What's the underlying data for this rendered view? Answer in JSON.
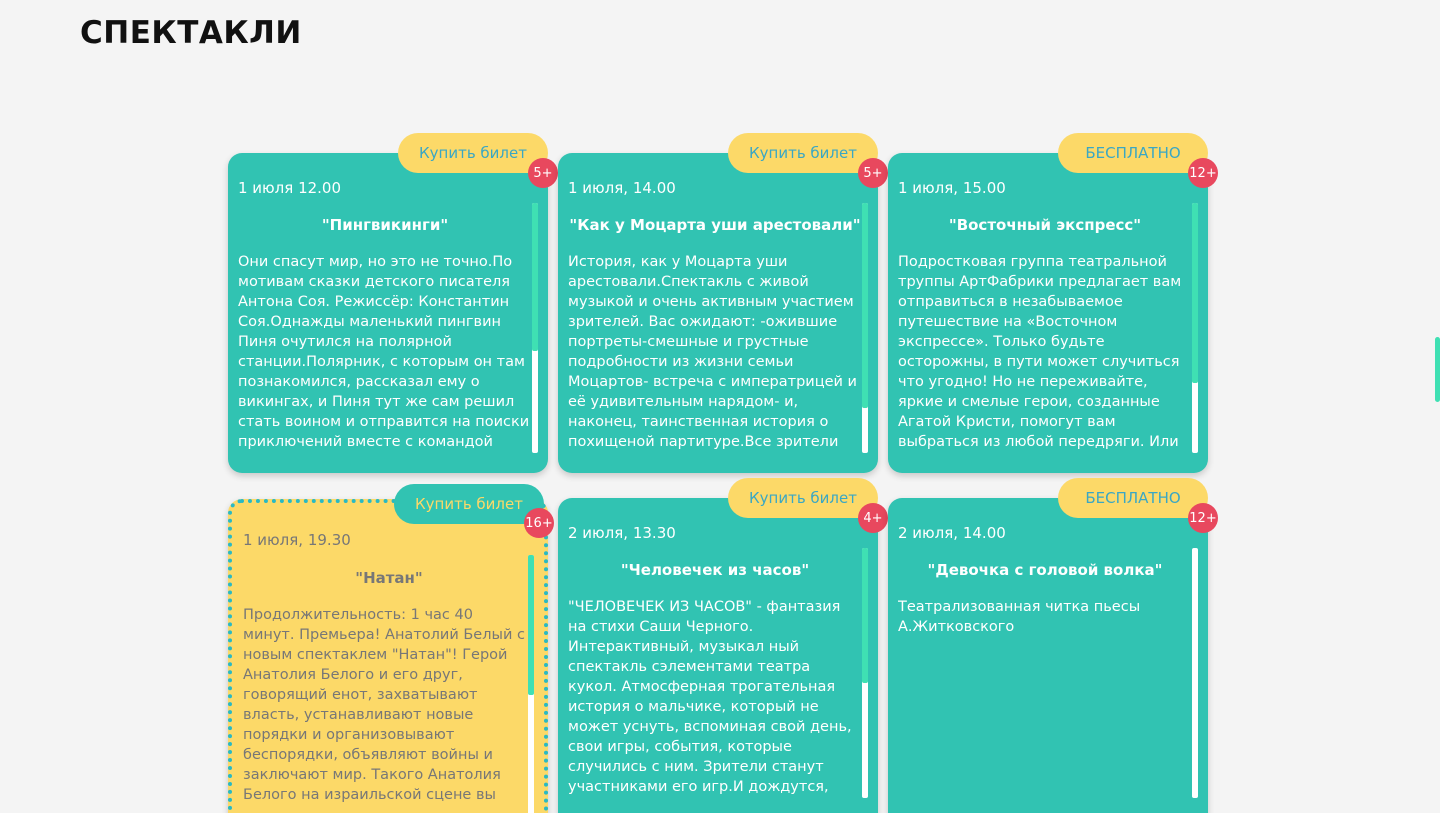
{
  "page": {
    "title": "СПЕКТАКЛИ"
  },
  "cards": [
    {
      "button": "Купить билет",
      "age": "5+",
      "date": "1 июля 12.00",
      "title": "\"Пингвикинги\"",
      "description": "Они спасут мир, но это не точно.По мотивам сказки детского писателя Антона Соя. Режиссёр: Константин Соя.Однажды маленький пингвин Пиня очутился на полярной станции.Полярник, с которым он там познакомился, рассказал ему о викингах, и Пиня тут же сам решил стать воином и отправится на поиски приключений вместе с командой"
    },
    {
      "button": "Купить билет",
      "age": "5+",
      "date": "1 июля, 14.00",
      "title": "\"Как у Моцарта уши арестовали\"",
      "description": "История, как у Моцарта уши арестовали.Спектакль с живой музыкой и очень активным участием зрителей. Вас ожидают: -ожившие портреты-смешные и грустные подробности из жизни семьи Моцартов- встреча с императрицей и её удивительным нарядом- и, наконец, таинственная история о похищеной партитуре.Все зрители"
    },
    {
      "button": "БЕСПЛАТНО",
      "age": "12+",
      "date": "1 июля, 15.00",
      "title": "\"Восточный экспресс\"",
      "description": "Подростковая группа театральной труппы АртФабрики предлагает вам отправиться в незабываемое путешествие на «Восточном экспрессе». Только будьте осторожны, в пути может случиться что угодно! Но не переживайте, яркие и смелые герои, созданные Агатой Кристи, помогут вам выбраться из любой передряги. Или"
    },
    {
      "button": "Купить билет",
      "age": "16+",
      "date": "1 июля, 19.30",
      "title": "\"Натан\"",
      "description": "Продолжительность: 1 час 40 минут. Премьера! Анатолий Белый с новым спектаклем \"Натан\"! Герой Анатолия Белого и его друг, говорящий енот, захватывают власть, устанавливают новые порядки и организовывают беспорядки, объявляют войны и заключают мир. Такого Анатолия Белого на израильской сцене вы"
    },
    {
      "button": "Купить билет",
      "age": "4+",
      "date": "2 июля, 13.30",
      "title": "\"Человечек из часов\"",
      "description": "\"ЧЕЛОВЕЧЕК ИЗ ЧАСОВ\" - фантазия на стихи Саши Черного. Интерактивный, музыкал ный спектакль сэлементами театра кукол. Атмосферная трогательная история о мальчике, который не может уснуть, вспоминая свой день, свои игры, события, которые случились с ним. Зрители станут участниками его игр.И дождутся, когда герой все таки"
    },
    {
      "button": "БЕСПЛАТНО",
      "age": "12+",
      "date": "2 июля, 14.00",
      "title": "\"Девочка с головой волка\"",
      "description": "Театрализованная читка пьесы А.Житковского"
    }
  ]
}
